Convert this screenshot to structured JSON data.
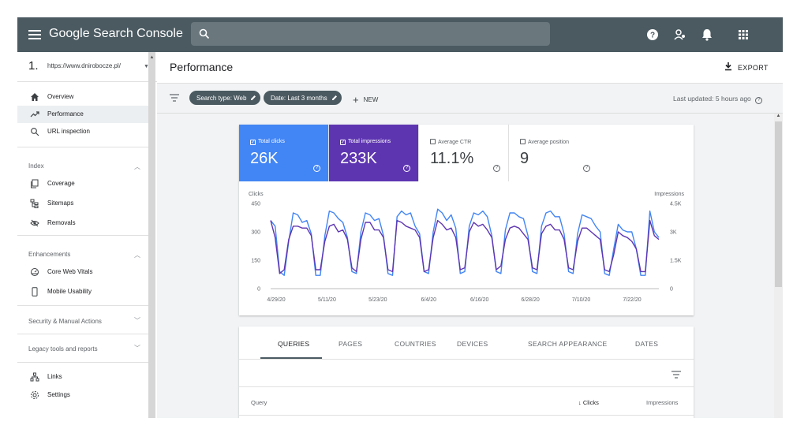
{
  "topbar": {
    "brand": "Google Search Console",
    "icons": [
      "menu-icon",
      "search-icon",
      "help-icon",
      "users-icon",
      "bell-icon",
      "apps-icon"
    ],
    "color": "#4b5a61"
  },
  "sidebar": {
    "property_number": "1.",
    "property_url": "https://www.dnirobocze.pl/",
    "items": [
      {
        "label": "Overview",
        "icon": "home-icon"
      },
      {
        "label": "Performance",
        "icon": "trending-up-icon",
        "active": true
      },
      {
        "label": "URL inspection",
        "icon": "search-icon"
      }
    ],
    "index_section": {
      "title": "Index",
      "items": [
        {
          "label": "Coverage",
          "icon": "coverage-icon"
        },
        {
          "label": "Sitemaps",
          "icon": "sitemap-icon"
        },
        {
          "label": "Removals",
          "icon": "removals-icon"
        }
      ]
    },
    "enhancements_section": {
      "title": "Enhancements",
      "items": [
        {
          "label": "Core Web Vitals",
          "icon": "gauge-icon"
        },
        {
          "label": "Mobile Usability",
          "icon": "phone-icon"
        }
      ]
    },
    "security_section": {
      "title": "Security & Manual Actions"
    },
    "legacy_section": {
      "title": "Legacy tools and reports"
    },
    "bottom_items": [
      {
        "label": "Links",
        "icon": "links-icon"
      },
      {
        "label": "Settings",
        "icon": "settings-icon"
      }
    ]
  },
  "header": {
    "title": "Performance",
    "export_label": "EXPORT"
  },
  "filters": {
    "chips": [
      "Search type: Web",
      "Date: Last 3 months"
    ],
    "new_label": "NEW",
    "last_updated": "Last updated: 5 hours ago"
  },
  "metrics": [
    {
      "label": "Total clicks",
      "value": "26K",
      "checked": true,
      "color": "#4285f4"
    },
    {
      "label": "Total impressions",
      "value": "233K",
      "checked": true,
      "color": "#5e35b1"
    },
    {
      "label": "Average CTR",
      "value": "11.1%",
      "checked": false
    },
    {
      "label": "Average position",
      "value": "9",
      "checked": false
    }
  ],
  "chart_data": {
    "type": "line",
    "ylabel_left": "Clicks",
    "ylabel_right": "Impressions",
    "y_left_ticks": [
      "450",
      "300",
      "150",
      "0"
    ],
    "y_right_ticks": [
      "4.5K",
      "3K",
      "1.5K",
      "0"
    ],
    "ylim_left": [
      0,
      450
    ],
    "ylim_right": [
      0,
      4500
    ],
    "x_tick_labels": [
      "4/29/20",
      "5/11/20",
      "5/23/20",
      "6/4/20",
      "6/16/20",
      "6/28/20",
      "7/10/20",
      "7/22/20"
    ],
    "series": [
      {
        "name": "Clicks",
        "color": "#4285f4",
        "axis": "left",
        "values": [
          360,
          330,
          90,
          70,
          250,
          400,
          390,
          350,
          360,
          290,
          70,
          70,
          280,
          410,
          400,
          370,
          350,
          270,
          90,
          80,
          300,
          400,
          390,
          360,
          370,
          280,
          80,
          70,
          380,
          410,
          390,
          400,
          330,
          290,
          90,
          80,
          300,
          420,
          400,
          360,
          390,
          320,
          80,
          90,
          330,
          400,
          390,
          410,
          380,
          280,
          90,
          80,
          310,
          400,
          400,
          380,
          370,
          280,
          90,
          80,
          330,
          400,
          410,
          380,
          380,
          290,
          90,
          80,
          290,
          390,
          380,
          370,
          330,
          300,
          80,
          70,
          210,
          340,
          310,
          300,
          300,
          210,
          70,
          70,
          410,
          300,
          270
        ]
      },
      {
        "name": "Impressions",
        "color": "#5e35b1",
        "axis": "right",
        "values": [
          3600,
          2700,
          800,
          1000,
          2600,
          3300,
          3300,
          3200,
          3200,
          2800,
          1000,
          1000,
          2500,
          3300,
          3400,
          3000,
          3100,
          2600,
          1100,
          900,
          2600,
          3500,
          3500,
          3100,
          3100,
          2700,
          1000,
          900,
          3600,
          3500,
          3300,
          3200,
          3100,
          2700,
          900,
          1000,
          2700,
          3600,
          3400,
          3100,
          3200,
          2700,
          1000,
          1100,
          3000,
          3500,
          3300,
          3400,
          3100,
          2700,
          1000,
          1200,
          2600,
          3200,
          3300,
          3200,
          2900,
          2600,
          1100,
          1000,
          2900,
          3300,
          3400,
          3100,
          3100,
          2600,
          1100,
          1000,
          2500,
          3200,
          3200,
          3000,
          2800,
          2600,
          1000,
          900,
          1800,
          3000,
          2800,
          2700,
          2500,
          2100,
          900,
          900,
          3600,
          2800,
          2600
        ]
      }
    ]
  },
  "table": {
    "tabs": [
      "QUERIES",
      "PAGES",
      "COUNTRIES",
      "DEVICES",
      "SEARCH APPEARANCE",
      "DATES"
    ],
    "active_tab": "QUERIES",
    "columns": {
      "query": "Query",
      "clicks": "Clicks",
      "impressions": "Impressions"
    }
  }
}
